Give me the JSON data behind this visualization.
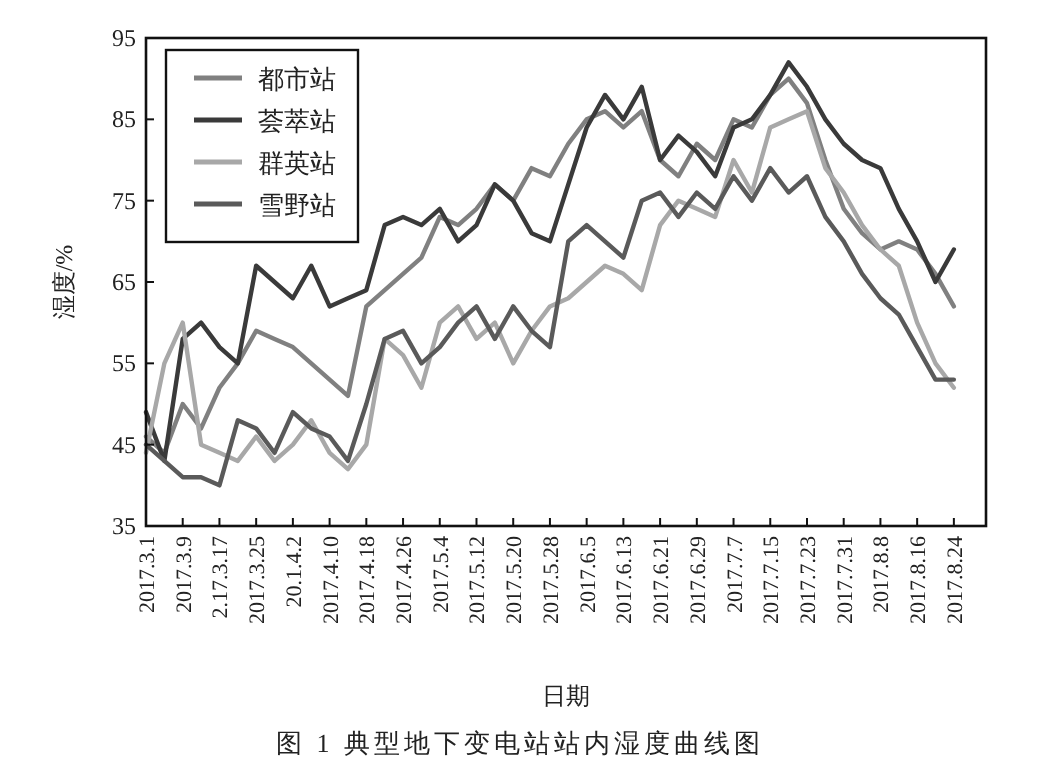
{
  "chart_data": {
    "type": "line",
    "xlabel": "日期",
    "ylabel": "湿度/%",
    "annotations": [
      "图 1   典型地下变电站站内湿度曲线图"
    ],
    "x": [
      "2017-03-01",
      "2017-03-05",
      "2017-03-09",
      "2017-03-13",
      "2017-03-17",
      "2017-03-21",
      "2017-03-25",
      "2017-03-29",
      "2017-04-02",
      "2017-04-06",
      "2017-04-10",
      "2017-04-14",
      "2017-04-18",
      "2017-04-22",
      "2017-04-26",
      "2017-04-30",
      "2017-05-04",
      "2017-05-08",
      "2017-05-12",
      "2017-05-16",
      "2017-05-20",
      "2017-05-24",
      "2017-05-28",
      "2017-06-01",
      "2017-06-05",
      "2017-06-09",
      "2017-06-13",
      "2017-06-17",
      "2017-06-21",
      "2017-06-25",
      "2017-06-29",
      "2017-07-03",
      "2017-07-07",
      "2017-07-11",
      "2017-07-15",
      "2017-07-19",
      "2017-07-23",
      "2017-07-27",
      "2017-07-31",
      "2017-08-04",
      "2017-08-08",
      "2017-08-12",
      "2017-08-16",
      "2017-08-20",
      "2017-08-24"
    ],
    "series": [
      {
        "name": "都市站",
        "color": "#808080",
        "values": [
          46,
          44,
          50,
          47,
          52,
          55,
          59,
          58,
          57,
          55,
          53,
          51,
          62,
          64,
          66,
          68,
          73,
          72,
          74,
          77,
          75,
          79,
          78,
          82,
          85,
          86,
          84,
          86,
          80,
          78,
          82,
          80,
          85,
          84,
          88,
          90,
          87,
          80,
          74,
          71,
          69,
          70,
          69,
          66,
          62
        ]
      },
      {
        "name": "荟萃站",
        "color": "#3a3a3a",
        "values": [
          49,
          43,
          58,
          60,
          57,
          55,
          67,
          65,
          63,
          67,
          62,
          63,
          64,
          72,
          73,
          72,
          74,
          70,
          72,
          77,
          75,
          71,
          70,
          77,
          84,
          88,
          85,
          89,
          80,
          83,
          81,
          78,
          84,
          85,
          88,
          92,
          89,
          85,
          82,
          80,
          79,
          74,
          70,
          65,
          69
        ]
      },
      {
        "name": "群英站",
        "color": "#a8a8a8",
        "values": [
          44,
          55,
          60,
          45,
          44,
          43,
          46,
          43,
          45,
          48,
          44,
          42,
          45,
          58,
          56,
          52,
          60,
          62,
          58,
          60,
          55,
          59,
          62,
          63,
          65,
          67,
          66,
          64,
          72,
          75,
          74,
          73,
          80,
          76,
          84,
          85,
          86,
          79,
          76,
          72,
          69,
          67,
          60,
          55,
          52
        ]
      },
      {
        "name": "雪野站",
        "color": "#5a5a5a",
        "values": [
          45,
          43,
          41,
          41,
          40,
          48,
          47,
          44,
          49,
          47,
          46,
          43,
          50,
          58,
          59,
          55,
          57,
          60,
          62,
          58,
          62,
          59,
          57,
          70,
          72,
          70,
          68,
          75,
          76,
          73,
          76,
          74,
          78,
          75,
          79,
          76,
          78,
          73,
          70,
          66,
          63,
          61,
          57,
          53,
          53
        ]
      }
    ],
    "xlim": [
      "2017-03-01",
      "2017-08-31"
    ],
    "xticks": [
      {
        "value": "2017-03-01",
        "label": "2017.3.1"
      },
      {
        "value": "2017-03-09",
        "label": "2017.3.9"
      },
      {
        "value": "2017-03-17",
        "label": "2.17.3.17"
      },
      {
        "value": "2017-03-25",
        "label": "2017.3.25"
      },
      {
        "value": "2017-04-02",
        "label": "20.1.4.2"
      },
      {
        "value": "2017-04-10",
        "label": "2017.4.10"
      },
      {
        "value": "2017-04-18",
        "label": "2017.4.18"
      },
      {
        "value": "2017-04-26",
        "label": "2017.4.26"
      },
      {
        "value": "2017-05-04",
        "label": "2017.5.4"
      },
      {
        "value": "2017-05-12",
        "label": "2017.5.12"
      },
      {
        "value": "2017-05-20",
        "label": "2017.5.20"
      },
      {
        "value": "2017-05-28",
        "label": "2017.5.28"
      },
      {
        "value": "2017-06-05",
        "label": "2017.6.5"
      },
      {
        "value": "2017-06-13",
        "label": "2017.6.13"
      },
      {
        "value": "2017-06-21",
        "label": "2017.6.21"
      },
      {
        "value": "2017-06-29",
        "label": "2017.6.29"
      },
      {
        "value": "2017-07-07",
        "label": "2017.7.7"
      },
      {
        "value": "2017-07-15",
        "label": "2017.7.15"
      },
      {
        "value": "2017-07-23",
        "label": "2017.7.23"
      },
      {
        "value": "2017-07-31",
        "label": "2017.7.31"
      },
      {
        "value": "2017-08-08",
        "label": "2017.8.8"
      },
      {
        "value": "2017-08-16",
        "label": "2017.8.16"
      },
      {
        "value": "2017-08-24",
        "label": "2017.8.24"
      }
    ],
    "ylim": [
      35,
      95
    ],
    "yticks": [
      35,
      45,
      55,
      65,
      75,
      85,
      95
    ],
    "legend": "top left",
    "marker": "none",
    "line_style": "solid",
    "grid": false
  }
}
